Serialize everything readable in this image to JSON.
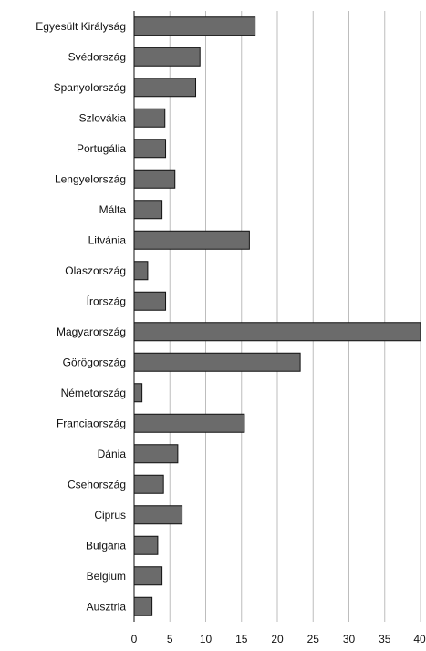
{
  "chart_data": {
    "type": "bar",
    "orientation": "horizontal",
    "categories": [
      "Egyesült Királyság",
      "Svédország",
      "Spanyolország",
      "Szlovákia",
      "Portugália",
      "Lengyelország",
      "Málta",
      "Litvánia",
      "Olaszország",
      "Írország",
      "Magyarország",
      "Görögország",
      "Németország",
      "Franciaország",
      "Dánia",
      "Csehország",
      "Ciprus",
      "Bulgária",
      "Belgium",
      "Ausztria"
    ],
    "values": [
      16.9,
      9.2,
      8.6,
      4.3,
      4.4,
      5.7,
      3.9,
      16.1,
      1.9,
      4.4,
      40.0,
      23.2,
      1.1,
      15.4,
      6.1,
      4.1,
      6.7,
      3.3,
      3.9,
      2.5
    ],
    "xlim": [
      0,
      40
    ],
    "xticks": [
      "0",
      "5",
      "10",
      "15",
      "20",
      "25",
      "30",
      "35",
      "40"
    ],
    "grid": true,
    "colors": {
      "bar": "#6b6b6b",
      "grid": "#bdbdbd"
    }
  }
}
